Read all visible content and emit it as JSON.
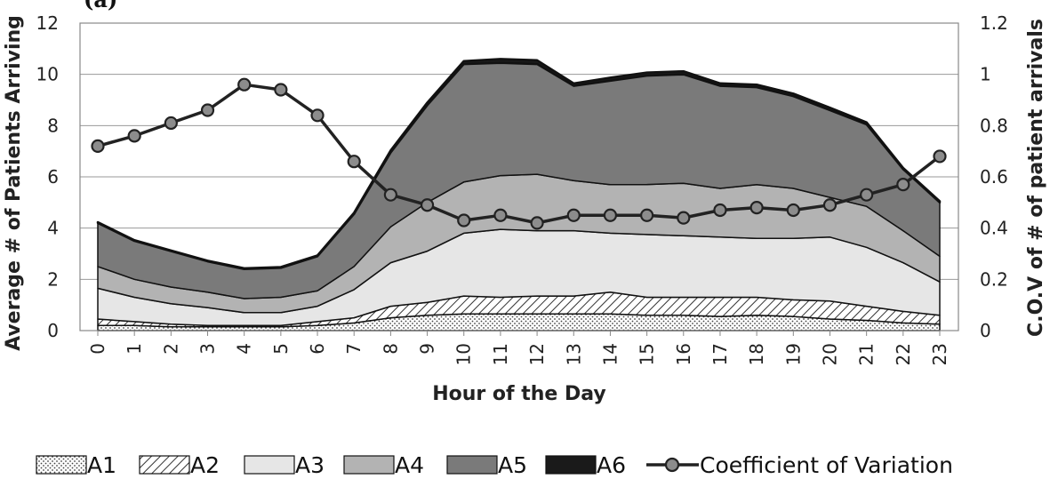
{
  "chart_data": {
    "type": "area",
    "panel_label": "(a)",
    "xlabel": "Hour of the Day",
    "ylabel": "Average # of Patients Arriving",
    "y2label": "C.O.V of # of patient arrivals",
    "ylim": [
      0,
      12
    ],
    "y2lim": [
      0,
      1.2
    ],
    "yticks": [
      "0",
      "2",
      "4",
      "6",
      "8",
      "10",
      "12"
    ],
    "y2ticks": [
      "0",
      "0.2",
      "0.4",
      "0.6",
      "0.8",
      "1",
      "1.2"
    ],
    "x": [
      "0",
      "1",
      "2",
      "3",
      "4",
      "5",
      "6",
      "7",
      "8",
      "9",
      "10",
      "11",
      "12",
      "13",
      "14",
      "15",
      "16",
      "17",
      "18",
      "19",
      "20",
      "21",
      "22",
      "23"
    ],
    "grid": "horizontal",
    "legend_position": "bottom",
    "stacked": true,
    "series": [
      {
        "name": "A1",
        "fill": "dots",
        "values": [
          0.2,
          0.2,
          0.15,
          0.15,
          0.15,
          0.15,
          0.2,
          0.3,
          0.5,
          0.6,
          0.65,
          0.65,
          0.65,
          0.65,
          0.65,
          0.6,
          0.6,
          0.55,
          0.6,
          0.55,
          0.45,
          0.4,
          0.3,
          0.25
        ]
      },
      {
        "name": "A2",
        "fill": "hatch",
        "values": [
          0.25,
          0.15,
          0.1,
          0.05,
          0.05,
          0.05,
          0.15,
          0.2,
          0.45,
          0.5,
          0.7,
          0.65,
          0.7,
          0.7,
          0.85,
          0.7,
          0.7,
          0.75,
          0.7,
          0.65,
          0.7,
          0.55,
          0.45,
          0.35
        ]
      },
      {
        "name": "A3",
        "fill": "#e6e6e6",
        "values": [
          1.2,
          0.95,
          0.8,
          0.7,
          0.5,
          0.5,
          0.6,
          1.1,
          1.7,
          2.0,
          2.45,
          2.65,
          2.55,
          2.55,
          2.3,
          2.45,
          2.4,
          2.35,
          2.3,
          2.4,
          2.5,
          2.3,
          1.9,
          1.3
        ]
      },
      {
        "name": "A4",
        "fill": "#b3b3b3",
        "values": [
          0.85,
          0.7,
          0.65,
          0.6,
          0.55,
          0.6,
          0.6,
          0.9,
          1.4,
          1.9,
          2.0,
          2.1,
          2.2,
          1.95,
          1.9,
          1.95,
          2.05,
          1.9,
          2.1,
          1.95,
          1.55,
          1.6,
          1.25,
          1.0
        ]
      },
      {
        "name": "A5",
        "fill": "#7a7a7a",
        "values": [
          1.7,
          1.5,
          1.4,
          1.2,
          1.15,
          1.15,
          1.35,
          2.05,
          2.9,
          3.8,
          4.6,
          4.4,
          4.3,
          3.7,
          4.05,
          4.25,
          4.25,
          4.0,
          3.8,
          3.6,
          3.4,
          3.2,
          2.4,
          2.1
        ]
      },
      {
        "name": "A6",
        "fill": "#1a1a1a",
        "values": [
          0.03,
          0.03,
          0.03,
          0.03,
          0.03,
          0.03,
          0.03,
          0.05,
          0.08,
          0.1,
          0.12,
          0.15,
          0.15,
          0.1,
          0.12,
          0.12,
          0.12,
          0.1,
          0.1,
          0.1,
          0.1,
          0.08,
          0.05,
          0.05
        ]
      }
    ],
    "line_series": {
      "name": "Coefficient of Variation",
      "axis": "right",
      "values": [
        0.72,
        0.76,
        0.81,
        0.86,
        0.96,
        0.94,
        0.84,
        0.66,
        0.53,
        0.49,
        0.43,
        0.45,
        0.42,
        0.45,
        0.45,
        0.45,
        0.44,
        0.47,
        0.48,
        0.47,
        0.49,
        0.53,
        0.57,
        0.68
      ]
    }
  }
}
